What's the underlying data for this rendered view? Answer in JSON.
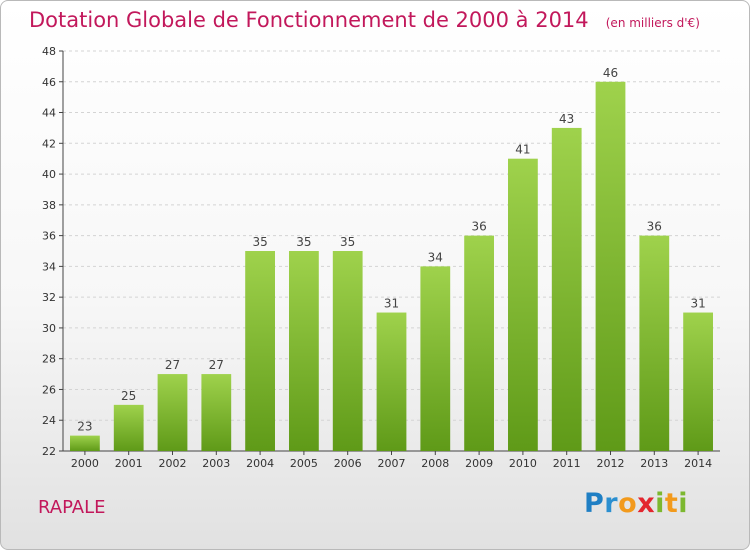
{
  "colors": {
    "title": "#c2185b",
    "bar_top": "#9fd24c",
    "bar_bottom": "#5f9a18",
    "grid": "#d4d4d4"
  },
  "logo": {
    "icon": "proxiti-logo",
    "text": "Proxiti"
  },
  "chart_data": {
    "type": "bar",
    "title": "Dotation Globale de Fonctionnement de 2000 à 2014",
    "subtitle": "(en milliers d'€)",
    "footer_label": "RAPALE",
    "xlabel": "",
    "ylabel": "",
    "ylim": [
      22,
      48
    ],
    "yticks": [
      22,
      24,
      26,
      28,
      30,
      32,
      34,
      36,
      38,
      40,
      42,
      44,
      46,
      48
    ],
    "grid": true,
    "categories": [
      "2000",
      "2001",
      "2002",
      "2003",
      "2004",
      "2005",
      "2006",
      "2007",
      "2008",
      "2009",
      "2010",
      "2011",
      "2012",
      "2013",
      "2014"
    ],
    "values": [
      23,
      25,
      27,
      27,
      35,
      35,
      35,
      31,
      34,
      36,
      41,
      43,
      46,
      36,
      31
    ]
  }
}
